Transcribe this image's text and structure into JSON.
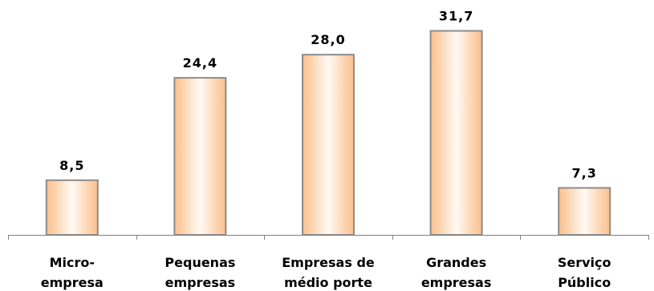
{
  "chart_data": {
    "type": "bar",
    "categories": [
      [
        "Micro-",
        "empresa"
      ],
      [
        "Pequenas",
        "empresas"
      ],
      [
        "Empresas de",
        "médio porte"
      ],
      [
        "Grandes",
        "empresas"
      ],
      [
        "Serviço",
        "Público"
      ]
    ],
    "values": [
      8.5,
      24.4,
      28.0,
      31.7,
      7.3
    ],
    "value_labels": [
      "8,5",
      "24,4",
      "28,0",
      "31,7",
      "7,3"
    ],
    "title": "",
    "xlabel": "",
    "ylabel": "",
    "ylim": [
      0,
      35
    ],
    "grid": false,
    "legend": "none",
    "colors": {
      "bar_light": "#fffaf3",
      "bar_dark": "#fbbf8b",
      "bar_border": "#8c8c8c",
      "axis": "#808080",
      "text": "#000000"
    }
  }
}
